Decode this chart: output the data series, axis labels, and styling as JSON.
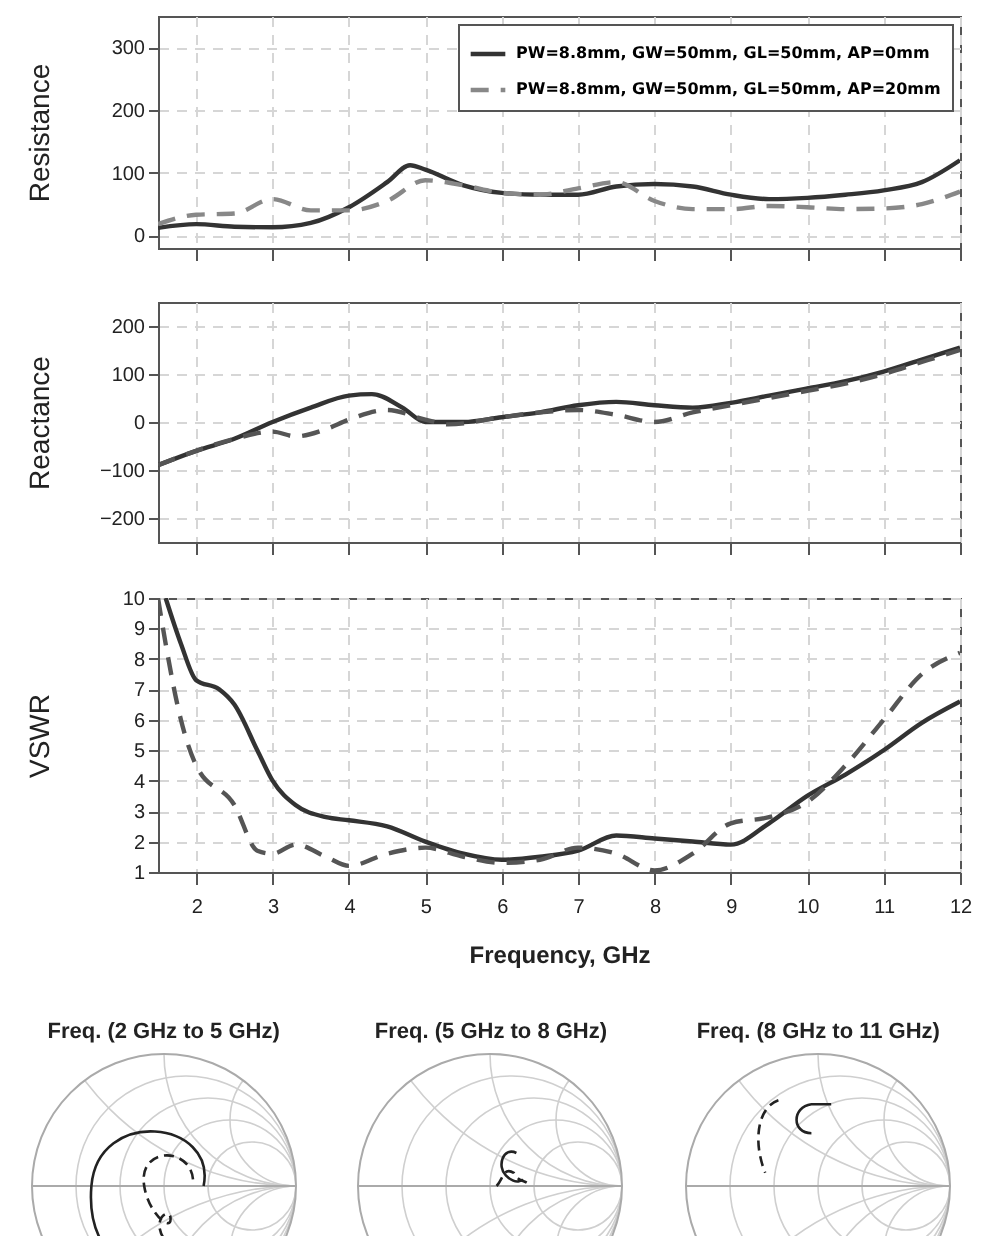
{
  "chart_data": [
    {
      "type": "line",
      "ylabel": "Resistance",
      "xlim": [
        1.5,
        12
      ],
      "xticks": [
        2,
        3,
        4,
        5,
        6,
        7,
        8,
        9,
        10,
        11,
        12
      ],
      "ylim": [
        -20,
        350
      ],
      "yticks": [
        0,
        100,
        200,
        300
      ],
      "grid": true,
      "legend": "top right",
      "tick_labels": "y",
      "series": [
        {
          "name": "PW=8.8mm, GW=50mm, GL=50mm, AP=0mm",
          "color": "#333333",
          "line_style": "solid",
          "x": [
            1.5,
            2,
            2.5,
            3,
            3.5,
            4,
            4.5,
            4.8,
            5,
            5.5,
            6,
            6.5,
            7,
            7.5,
            8,
            8.5,
            9,
            9.5,
            10,
            10.5,
            11,
            11.5,
            12
          ],
          "values": [
            12,
            18,
            14,
            13,
            20,
            45,
            85,
            112,
            105,
            80,
            68,
            65,
            65,
            78,
            82,
            78,
            65,
            58,
            60,
            65,
            72,
            85,
            120
          ]
        },
        {
          "name": "PW=8.8mm, GW=50mm, GL=50mm, AP=20mm",
          "color": "#888888",
          "line_style": "dashed",
          "x": [
            1.5,
            2,
            2.5,
            3,
            3.5,
            4,
            4.5,
            5,
            5.5,
            6,
            6.5,
            7,
            7.5,
            8,
            8.5,
            9,
            9.5,
            10,
            10.5,
            11,
            11.5,
            12
          ],
          "values": [
            18,
            33,
            35,
            58,
            40,
            40,
            55,
            88,
            80,
            68,
            65,
            75,
            85,
            55,
            42,
            42,
            47,
            45,
            42,
            43,
            50,
            70
          ]
        }
      ]
    },
    {
      "type": "line",
      "ylabel": "Reactance",
      "xlim": [
        1.5,
        12
      ],
      "xticks": [
        2,
        3,
        4,
        5,
        6,
        7,
        8,
        9,
        10,
        11,
        12
      ],
      "ylim": [
        -250,
        250
      ],
      "yticks": [
        -200,
        -100,
        0,
        100,
        200
      ],
      "grid": true,
      "tick_labels": "y",
      "series": [
        {
          "color": "#333333",
          "line_style": "solid",
          "x": [
            1.5,
            2,
            2.5,
            3,
            3.5,
            4,
            4.3,
            4.7,
            5,
            5.5,
            6,
            6.5,
            7,
            7.5,
            8,
            8.5,
            9,
            9.5,
            10,
            10.5,
            11,
            11.5,
            12
          ],
          "values": [
            -90,
            -60,
            -35,
            0,
            30,
            55,
            58,
            30,
            0,
            0,
            10,
            20,
            35,
            42,
            35,
            30,
            40,
            55,
            70,
            85,
            105,
            130,
            155
          ]
        },
        {
          "color": "#555555",
          "line_style": "dashed",
          "x": [
            1.5,
            2,
            2.5,
            3,
            3.3,
            3.7,
            4,
            4.5,
            5,
            5.3,
            6,
            6.5,
            7,
            7.5,
            8,
            8.5,
            9,
            9.5,
            10,
            10.5,
            11,
            11.5,
            12
          ],
          "values": [
            -90,
            -60,
            -35,
            -20,
            -30,
            -15,
            5,
            25,
            5,
            -5,
            10,
            20,
            25,
            15,
            0,
            20,
            35,
            50,
            65,
            80,
            100,
            125,
            150
          ]
        }
      ]
    },
    {
      "type": "line",
      "ylabel": "VSWR",
      "xlabel": "Frequency, GHz",
      "xlim": [
        1.5,
        12
      ],
      "xticks": [
        2,
        3,
        4,
        5,
        6,
        7,
        8,
        9,
        10,
        11,
        12
      ],
      "ylim": [
        1,
        10
      ],
      "yticks": [
        1,
        2,
        3,
        4,
        5,
        6,
        7,
        8,
        9,
        10
      ],
      "grid": true,
      "series": [
        {
          "color": "#333333",
          "line_style": "solid",
          "x": [
            1.6,
            1.8,
            2,
            2.3,
            2.5,
            2.8,
            3,
            3.3,
            3.7,
            4,
            4.5,
            5,
            5.5,
            6,
            6.5,
            7,
            7.5,
            8,
            8.5,
            9,
            9.5,
            10,
            10.5,
            11,
            11.5,
            12
          ],
          "values": [
            10,
            8.5,
            7.3,
            7.0,
            6.5,
            5,
            4,
            3.2,
            2.8,
            2.7,
            2.5,
            2.0,
            1.6,
            1.4,
            1.5,
            1.7,
            2.2,
            2.1,
            2.0,
            1.9,
            2.6,
            3.5,
            4.2,
            5.0,
            5.9,
            6.6
          ]
        },
        {
          "color": "#555555",
          "line_style": "dashed",
          "x": [
            1.5,
            1.6,
            1.8,
            2,
            2.5,
            2.8,
            3,
            3.3,
            3.7,
            4,
            4.5,
            5,
            5.5,
            6,
            6.5,
            7,
            7.5,
            8,
            8.5,
            9,
            9.5,
            10,
            10.5,
            11,
            11.5,
            12
          ],
          "values": [
            10,
            8.5,
            6,
            4.5,
            3.2,
            1.7,
            1.6,
            1.9,
            1.5,
            1.2,
            1.6,
            1.8,
            1.5,
            1.3,
            1.4,
            1.8,
            1.6,
            1.05,
            1.6,
            2.6,
            2.8,
            3.3,
            4.5,
            6.0,
            7.5,
            8.2
          ]
        }
      ]
    },
    {
      "type": "other",
      "title": "Freq. (2 GHz to 5 GHz)"
    },
    {
      "type": "other",
      "title": "Freq. (5 GHz to 8 GHz)"
    },
    {
      "type": "other",
      "title": "Freq. (8 GHz to 11 GHz)"
    }
  ]
}
